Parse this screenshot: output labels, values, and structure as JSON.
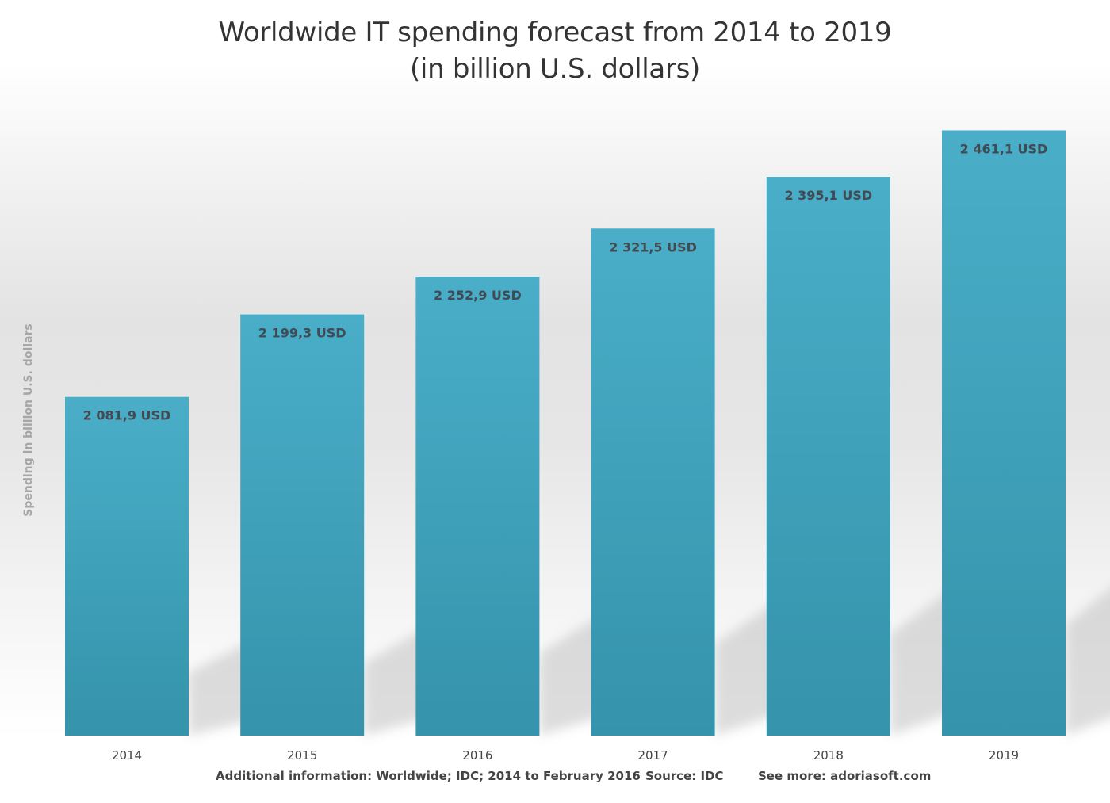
{
  "chart_data": {
    "type": "bar",
    "title": "Worldwide IT spending forecast from 2014 to 2019",
    "subtitle": "(in billion U.S. dollars)",
    "ylabel": "Spending in billion U.S. dollars",
    "xlabel": "",
    "categories": [
      "2014",
      "2015",
      "2016",
      "2017",
      "2018",
      "2019"
    ],
    "values": [
      2081.9,
      2199.3,
      2252.9,
      2321.5,
      2395.1,
      2461.1
    ],
    "value_labels": [
      "2 081,9 USD",
      "2 199,3 USD",
      "2 252,9 USD",
      "2 321,5 USD",
      "2 395,1 USD",
      "2 461,1 USD"
    ],
    "ylim": [
      1600,
      2500
    ],
    "grid": false,
    "legend": "none",
    "colors": {
      "bar_top": "#4aaec8",
      "bar_bottom": "#3593ab",
      "shadow": "#c2c2c2"
    }
  },
  "footer": {
    "additional_info": "Additional information: Worldwide; IDC; 2014 to February 2016",
    "source": "Source: IDC",
    "see_more": "See more: adoriasoft.com"
  }
}
